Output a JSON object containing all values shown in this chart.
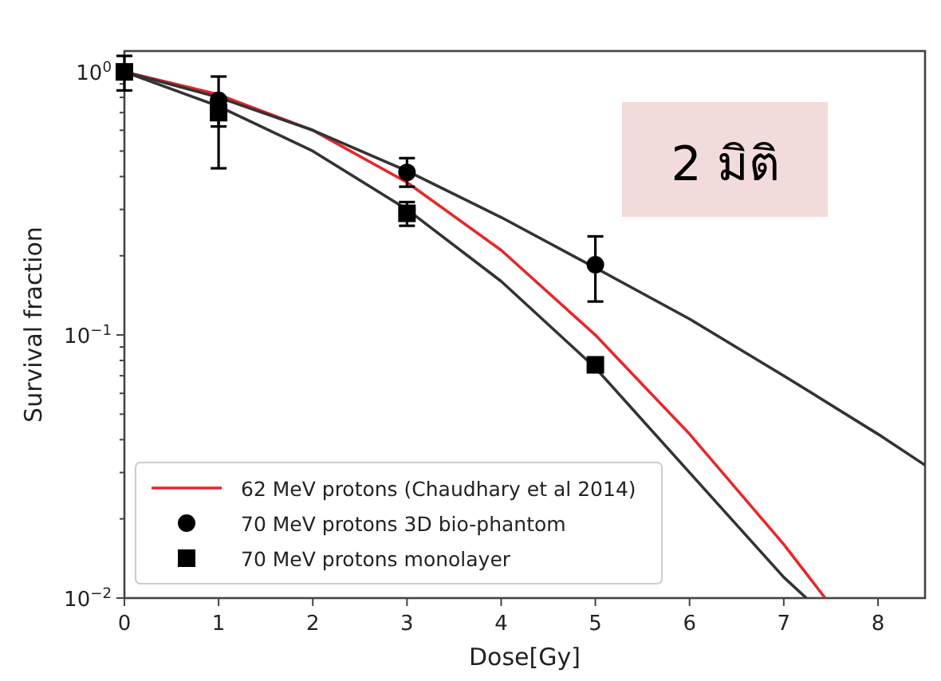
{
  "chart_data": {
    "type": "line",
    "xlabel": "Dose[Gy]",
    "ylabel": "Survival fraction",
    "log": "y",
    "xlim": [
      0,
      8.5
    ],
    "ylim": [
      0.01,
      1.2
    ],
    "xticks": [
      0,
      1,
      2,
      3,
      4,
      5,
      6,
      7,
      8
    ],
    "yticks": [
      {
        "value": 0.01,
        "label": "10$^{−2}$"
      },
      {
        "value": 0.1,
        "label": "10$^{−1}$"
      },
      {
        "value": 1,
        "label": "10$^{0}$"
      }
    ],
    "legend": "bottom left",
    "series": [
      {
        "name": "62 MeV protons (Chaudhary et al 2014)",
        "color": "#e8272a",
        "marker": "none",
        "x": [
          0,
          1,
          2,
          3,
          4,
          5,
          6,
          7,
          7.44
        ],
        "values": [
          1,
          0.82,
          0.6,
          0.38,
          0.21,
          0.1,
          0.042,
          0.016,
          0.01
        ]
      },
      {
        "color": "#333333",
        "marker": "none",
        "x": [
          0,
          1,
          2,
          3,
          4,
          5,
          6,
          7,
          8,
          8.5
        ],
        "values": [
          1,
          0.8,
          0.6,
          0.42,
          0.28,
          0.18,
          0.115,
          0.07,
          0.042,
          0.032
        ]
      },
      {
        "color": "#333333",
        "marker": "none",
        "x": [
          0,
          1,
          2,
          3,
          4,
          5,
          6,
          7,
          7.24
        ],
        "values": [
          1,
          0.74,
          0.5,
          0.3,
          0.16,
          0.075,
          0.03,
          0.012,
          0.01
        ]
      },
      {
        "name": "70 MeV protons 3D bio-phantom",
        "type": "scatter",
        "color": "#000000",
        "marker": "circle",
        "x": [
          1,
          3,
          5
        ],
        "values": [
          0.78,
          0.415,
          0.185
        ],
        "errors": [
          [
            0.43,
            0.96
          ],
          [
            0.366,
            0.47
          ],
          [
            0.134,
            0.237
          ]
        ]
      },
      {
        "name": "70 MeV protons monolayer",
        "type": "scatter",
        "color": "#000000",
        "marker": "square",
        "x": [
          0,
          1,
          3,
          5
        ],
        "values": [
          1,
          0.7,
          0.29,
          0.077
        ],
        "errors": [
          [
            0.85,
            1.15
          ],
          [
            0.62,
            0.8
          ],
          [
            0.26,
            0.32
          ],
          [
            0.074,
            0.08
          ]
        ]
      }
    ],
    "annotations": [
      "2 มิติ"
    ]
  }
}
